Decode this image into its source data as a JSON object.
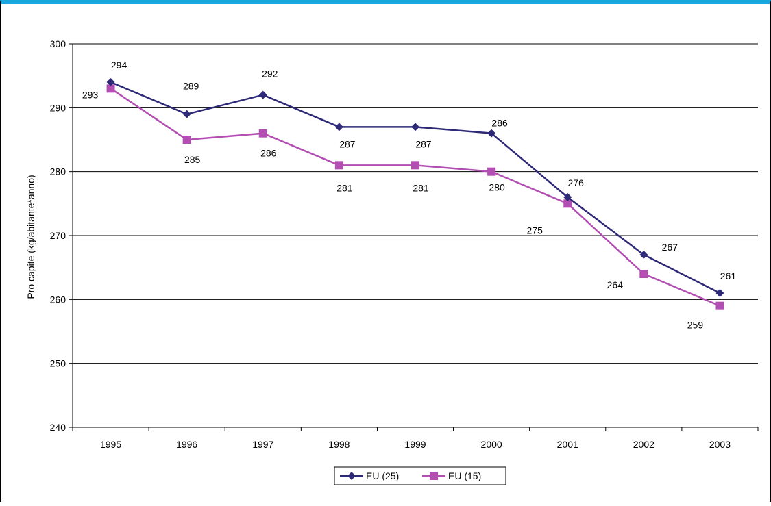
{
  "chart_data": {
    "type": "line",
    "title": "",
    "xlabel": "",
    "ylabel": "Pro capite (kg/abitante*anno)",
    "categories": [
      "1995",
      "1996",
      "1997",
      "1998",
      "1999",
      "2000",
      "2001",
      "2002",
      "2003"
    ],
    "ylim": [
      240,
      300
    ],
    "yticks": [
      240,
      250,
      260,
      270,
      280,
      290,
      300
    ],
    "grid": true,
    "legend_position": "bottom",
    "series": [
      {
        "name": "EU (25)",
        "values": [
          294,
          289,
          292,
          287,
          287,
          286,
          276,
          267,
          261
        ],
        "color": "#2e2a78",
        "marker": "diamond"
      },
      {
        "name": "EU (15)",
        "values": [
          293,
          285,
          286,
          281,
          281,
          280,
          275,
          264,
          259
        ],
        "color": "#b34fb3",
        "marker": "square"
      }
    ]
  },
  "colors": {
    "frame_top": "#1aa6df",
    "gridline": "#000000",
    "background": "#ffffff"
  }
}
